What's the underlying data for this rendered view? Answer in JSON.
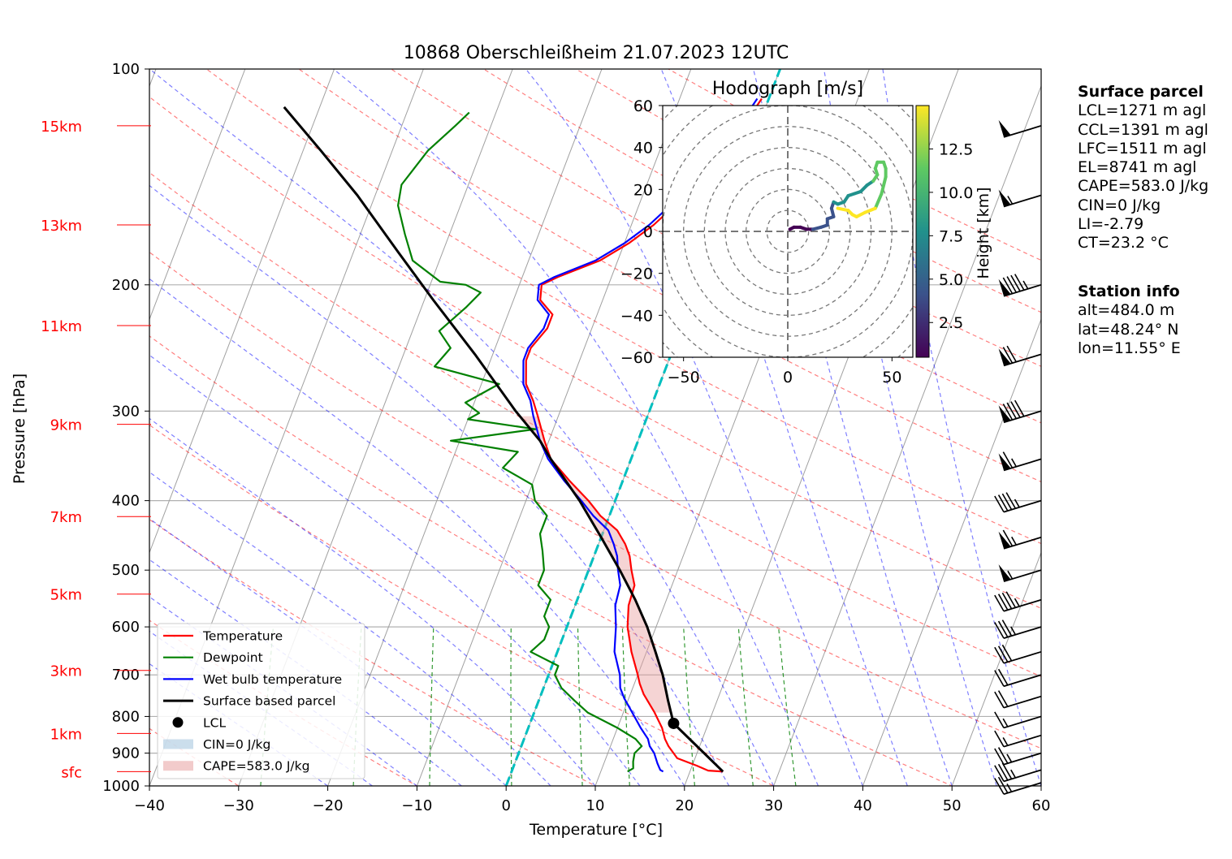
{
  "chart_data": {
    "type": "skew-t log-p",
    "title": "10868 Oberschleißheim 21.07.2023 12UTC",
    "xlabel": "Temperature [°C]",
    "ylabel": "Pressure [hPa]",
    "xlim": [
      -40,
      60
    ],
    "ylim": [
      1000,
      100
    ],
    "xticks": [
      -40,
      -30,
      -20,
      -10,
      0,
      10,
      20,
      30,
      40,
      50,
      60
    ],
    "yticks": [
      1000,
      900,
      800,
      700,
      600,
      500,
      400,
      300,
      200,
      100
    ],
    "height_labels": [
      {
        "label": "sfc",
        "pressure": 955
      },
      {
        "label": "1km",
        "pressure": 845
      },
      {
        "label": "3km",
        "pressure": 690
      },
      {
        "label": "5km",
        "pressure": 540
      },
      {
        "label": "7km",
        "pressure": 421
      },
      {
        "label": "9km",
        "pressure": 313
      },
      {
        "label": "11km",
        "pressure": 228
      },
      {
        "label": "13km",
        "pressure": 165
      },
      {
        "label": "15km",
        "pressure": 120
      }
    ],
    "series": [
      {
        "name": "Temperature",
        "color": "#ff0000",
        "points": [
          [
            23.7,
            955
          ],
          [
            22,
            952
          ],
          [
            20.5,
            937
          ],
          [
            18,
            915
          ],
          [
            16.5,
            880
          ],
          [
            15.8,
            860
          ],
          [
            15,
            830
          ],
          [
            13.5,
            790
          ],
          [
            11.5,
            745
          ],
          [
            10.6,
            720
          ],
          [
            10,
            700
          ],
          [
            8.3,
            650
          ],
          [
            6.8,
            600
          ],
          [
            6,
            560
          ],
          [
            5.8,
            525
          ],
          [
            4.8,
            500
          ],
          [
            4,
            478
          ],
          [
            3,
            460
          ],
          [
            1.5,
            440
          ],
          [
            -1,
            420
          ],
          [
            -3,
            400
          ],
          [
            -6,
            375
          ],
          [
            -9,
            350
          ],
          [
            -10.5,
            330
          ],
          [
            -12.3,
            305
          ],
          [
            -13.5,
            290
          ],
          [
            -15,
            275
          ],
          [
            -16,
            255
          ],
          [
            -16,
            245
          ],
          [
            -15,
            230
          ],
          [
            -15,
            220
          ],
          [
            -17,
            210
          ],
          [
            -17.5,
            200
          ],
          [
            -16,
            195
          ],
          [
            -12,
            185
          ],
          [
            -9.5,
            175
          ],
          [
            -7.5,
            165
          ],
          [
            -5.5,
            152
          ],
          [
            -5,
            140
          ],
          [
            -3,
            130
          ],
          [
            -1.5,
            118
          ],
          [
            -0.8,
            110
          ]
        ]
      },
      {
        "name": "Dewpoint",
        "color": "#008000",
        "points": [
          [
            13,
            955
          ],
          [
            13.5,
            945
          ],
          [
            13.2,
            925
          ],
          [
            13,
            900
          ],
          [
            13.5,
            880
          ],
          [
            12.5,
            860
          ],
          [
            10,
            830
          ],
          [
            6,
            790
          ],
          [
            4,
            760
          ],
          [
            2,
            730
          ],
          [
            0.7,
            700
          ],
          [
            0.7,
            680
          ],
          [
            -3,
            650
          ],
          [
            -2,
            625
          ],
          [
            -2,
            600
          ],
          [
            -3,
            580
          ],
          [
            -3,
            550
          ],
          [
            -5,
            525
          ],
          [
            -5,
            500
          ],
          [
            -6,
            470
          ],
          [
            -7,
            445
          ],
          [
            -7,
            420
          ],
          [
            -9,
            400
          ],
          [
            -10,
            380
          ],
          [
            -14,
            360
          ],
          [
            -13,
            342
          ],
          [
            -21,
            330
          ],
          [
            -12,
            318
          ],
          [
            -20,
            308
          ],
          [
            -19,
            302
          ],
          [
            -21,
            292
          ],
          [
            -18,
            275
          ],
          [
            -26,
            260
          ],
          [
            -25,
            245
          ],
          [
            -27,
            232
          ],
          [
            -25,
            215
          ],
          [
            -24,
            205
          ],
          [
            -26,
            200
          ],
          [
            -29,
            198
          ],
          [
            -33,
            185
          ],
          [
            -35,
            170
          ],
          [
            -37,
            155
          ],
          [
            -37.5,
            145
          ],
          [
            -36,
            130
          ],
          [
            -34,
            120
          ],
          [
            -33,
            115
          ]
        ]
      },
      {
        "name": "Wet bulb temperature",
        "color": "#0000ff",
        "points": [
          [
            17,
            955
          ],
          [
            16.6,
            950
          ],
          [
            16,
            930
          ],
          [
            15.2,
            900
          ],
          [
            14.4,
            880
          ],
          [
            13.9,
            860
          ],
          [
            12.6,
            830
          ],
          [
            11,
            790
          ],
          [
            9.5,
            755
          ],
          [
            8.6,
            730
          ],
          [
            8,
            700
          ],
          [
            6.4,
            650
          ],
          [
            5.5,
            600
          ],
          [
            4.5,
            560
          ],
          [
            4.2,
            525
          ],
          [
            3.3,
            500
          ],
          [
            2.6,
            478
          ],
          [
            1.7,
            460
          ],
          [
            0.5,
            440
          ],
          [
            -1.8,
            420
          ],
          [
            -3.8,
            400
          ],
          [
            -6.6,
            375
          ],
          [
            -9.3,
            350
          ],
          [
            -11,
            330
          ],
          [
            -12.8,
            305
          ],
          [
            -13.8,
            290
          ],
          [
            -15.3,
            275
          ],
          [
            -16.3,
            255
          ],
          [
            -16.3,
            245
          ],
          [
            -15.4,
            230
          ],
          [
            -15.4,
            220
          ],
          [
            -17.3,
            210
          ],
          [
            -17.8,
            200
          ],
          [
            -16.4,
            195
          ],
          [
            -12.5,
            185
          ],
          [
            -10,
            175
          ],
          [
            -8,
            165
          ],
          [
            -6,
            152
          ],
          [
            -5.4,
            140
          ],
          [
            -3.4,
            130
          ],
          [
            -2,
            118
          ],
          [
            -1.3,
            110
          ]
        ]
      },
      {
        "name": "Surface based parcel",
        "color": "#000000",
        "points": [
          [
            23.7,
            955
          ],
          [
            16.1,
            818
          ],
          [
            14.5,
            760
          ],
          [
            12.8,
            700
          ],
          [
            11,
            650
          ],
          [
            9,
            600
          ],
          [
            6.5,
            550
          ],
          [
            3.5,
            500
          ],
          [
            0,
            450
          ],
          [
            -4,
            400
          ],
          [
            -9,
            350
          ],
          [
            -11,
            330
          ],
          [
            -15,
            300
          ],
          [
            -22,
            250
          ],
          [
            -29,
            210
          ],
          [
            -35,
            180
          ],
          [
            -42,
            150
          ],
          [
            -48,
            130
          ],
          [
            -54,
            113
          ]
        ]
      }
    ],
    "lcl": {
      "name": "LCL",
      "temperature": 16.1,
      "pressure": 818
    },
    "cin_label": "CIN=0 J/kg",
    "cape_label": "CAPE=583.0 J/kg",
    "wet_bulb_zero_color": "#00bfbf",
    "winds": [
      {
        "pressure": 990,
        "speed_kt": 25
      },
      {
        "pressure": 950,
        "speed_kt": 35
      },
      {
        "pressure": 900,
        "speed_kt": 25
      },
      {
        "pressure": 850,
        "speed_kt": 15
      },
      {
        "pressure": 800,
        "speed_kt": 15
      },
      {
        "pressure": 750,
        "speed_kt": 20
      },
      {
        "pressure": 700,
        "speed_kt": 20
      },
      {
        "pressure": 650,
        "speed_kt": 30
      },
      {
        "pressure": 600,
        "speed_kt": 35
      },
      {
        "pressure": 550,
        "speed_kt": 45
      },
      {
        "pressure": 500,
        "speed_kt": 55
      },
      {
        "pressure": 450,
        "speed_kt": 65
      },
      {
        "pressure": 400,
        "speed_kt": 45
      },
      {
        "pressure": 350,
        "speed_kt": 65
      },
      {
        "pressure": 300,
        "speed_kt": 90
      },
      {
        "pressure": 250,
        "speed_kt": 70
      },
      {
        "pressure": 200,
        "speed_kt": 95
      },
      {
        "pressure": 150,
        "speed_kt": 55
      },
      {
        "pressure": 120,
        "speed_kt": 50
      }
    ],
    "legend": {
      "placement": "lower-left",
      "entries": [
        "Temperature",
        "Dewpoint",
        "Wet bulb temperature",
        "Surface based parcel",
        "LCL",
        "CIN=0 J/kg",
        "CAPE=583.0 J/kg"
      ]
    },
    "hodograph": {
      "title": "Hodograph [m/s]",
      "xlim": [
        -60,
        60
      ],
      "ylim": [
        -60,
        60
      ],
      "xticks": [
        -50,
        0,
        50
      ],
      "yticks": [
        60,
        40,
        20,
        0,
        -20,
        -40,
        -60
      ],
      "colorbar": {
        "label": "Height [km]",
        "ticks": [
          2.5,
          5.0,
          7.5,
          10.0,
          12.5
        ],
        "range": [
          0.5,
          15
        ]
      },
      "points": [
        [
          1,
          1,
          0.6
        ],
        [
          3,
          2,
          1.0
        ],
        [
          6,
          2,
          1.6
        ],
        [
          9,
          1,
          2.2
        ],
        [
          12,
          1,
          2.9
        ],
        [
          16,
          2,
          3.5
        ],
        [
          19,
          3,
          4.0
        ],
        [
          19,
          6,
          4.6
        ],
        [
          22,
          7,
          5.1
        ],
        [
          21,
          11,
          5.7
        ],
        [
          22,
          14,
          6.2
        ],
        [
          24,
          13,
          6.8
        ],
        [
          27,
          14,
          7.3
        ],
        [
          29,
          17,
          7.9
        ],
        [
          32,
          18,
          8.4
        ],
        [
          35,
          19,
          9.0
        ],
        [
          38,
          22,
          9.5
        ],
        [
          41,
          24,
          10.0
        ],
        [
          43,
          27,
          10.6
        ],
        [
          42,
          30,
          11.0
        ],
        [
          43,
          33,
          11.4
        ],
        [
          46,
          33,
          11.8
        ],
        [
          47,
          30,
          12.2
        ],
        [
          47,
          26,
          12.6
        ],
        [
          45,
          18,
          13.0
        ],
        [
          42,
          11,
          13.4
        ],
        [
          37,
          9,
          13.7
        ],
        [
          33,
          7,
          14.0
        ],
        [
          31,
          8,
          14.2
        ],
        [
          29,
          10,
          14.4
        ],
        [
          24,
          11,
          14.6
        ]
      ]
    }
  },
  "surface_parcel": {
    "heading": "Surface parcel",
    "lines": [
      "LCL=1271 m agl",
      "CCL=1391 m agl",
      "LFC=1511 m agl",
      "EL=8741 m agl",
      "CAPE=583.0 J/kg",
      "CIN=0 J/kg",
      "LI=-2.79",
      "CT=23.2 °C"
    ]
  },
  "station_info": {
    "heading": "Station info",
    "lines": [
      "alt=484.0 m",
      "lat=48.24° N",
      "lon=11.55° E"
    ]
  }
}
